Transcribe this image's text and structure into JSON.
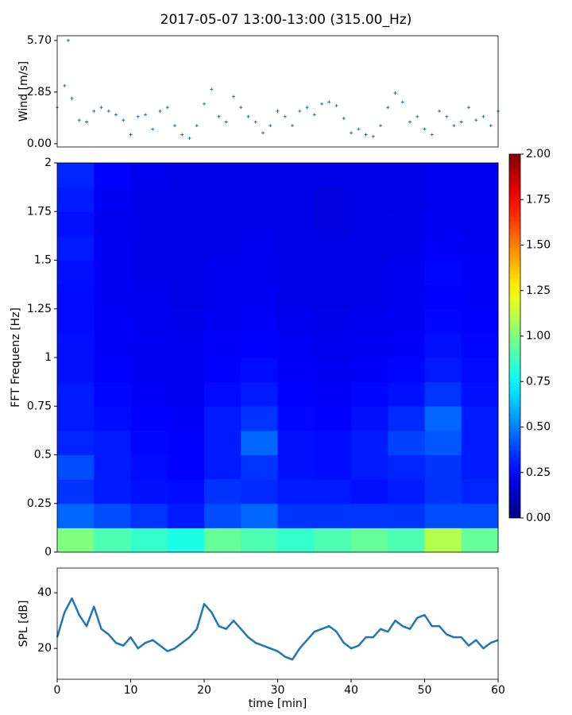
{
  "title": "2017-05-07 13:00-13:00 (315.00_Hz)",
  "chart_data": [
    {
      "type": "scatter",
      "ylabel": "Wind [m/s]",
      "color": "#1f77b4",
      "x": [
        0,
        1,
        2,
        3,
        4,
        5,
        6,
        7,
        8,
        9,
        10,
        11,
        12,
        13,
        14,
        15,
        16,
        17,
        18,
        19,
        20,
        21,
        22,
        23,
        24,
        25,
        26,
        27,
        28,
        29,
        30,
        31,
        32,
        33,
        34,
        35,
        36,
        37,
        38,
        39,
        40,
        41,
        42,
        43,
        44,
        45,
        46,
        47,
        48,
        49,
        50,
        51,
        52,
        53,
        54,
        55,
        56,
        57,
        58,
        59,
        60,
        1.5
      ],
      "values": [
        2.0,
        3.2,
        2.5,
        1.3,
        1.2,
        1.8,
        2.0,
        1.8,
        1.6,
        1.3,
        0.5,
        1.5,
        1.6,
        0.8,
        1.8,
        2.0,
        1.0,
        0.5,
        0.3,
        1.0,
        2.2,
        3.0,
        1.5,
        1.2,
        2.6,
        2.0,
        1.5,
        1.2,
        0.6,
        1.0,
        1.8,
        1.5,
        1.0,
        1.8,
        2.0,
        1.6,
        2.2,
        2.3,
        2.1,
        1.4,
        0.6,
        0.8,
        0.5,
        0.4,
        1.0,
        2.0,
        2.8,
        2.3,
        1.2,
        1.5,
        0.8,
        0.5,
        1.8,
        1.5,
        1.0,
        1.2,
        2.0,
        1.3,
        1.5,
        1.0,
        1.8,
        5.7
      ],
      "xlim": [
        0,
        60
      ],
      "ylim": [
        -0.18,
        5.96
      ],
      "yticks": [
        {
          "value": 0,
          "label": "0.00"
        },
        {
          "value": 2.85,
          "label": "2.85"
        },
        {
          "value": 5.7,
          "label": "5.70"
        }
      ]
    },
    {
      "type": "heatmap",
      "ylabel": "FFT Frequenz [Hz]",
      "colormap": "jet",
      "xbins": [
        0,
        5,
        10,
        15,
        20,
        25,
        30,
        35,
        40,
        45,
        50,
        55,
        60
      ],
      "ybins": [
        0,
        0.125,
        0.25,
        0.375,
        0.5,
        0.625,
        0.75,
        0.875,
        1,
        1.125,
        1.25,
        1.375,
        1.5,
        1.625,
        1.75,
        1.875,
        2
      ],
      "values": [
        [
          1.0,
          0.9,
          0.85,
          0.8,
          0.95,
          0.9,
          0.85,
          0.9,
          0.95,
          0.9,
          1.1,
          0.95
        ],
        [
          0.45,
          0.4,
          0.35,
          0.3,
          0.4,
          0.45,
          0.35,
          0.35,
          0.35,
          0.35,
          0.4,
          0.4
        ],
        [
          0.35,
          0.3,
          0.28,
          0.27,
          0.35,
          0.33,
          0.3,
          0.3,
          0.28,
          0.3,
          0.35,
          0.32
        ],
        [
          0.4,
          0.3,
          0.27,
          0.25,
          0.3,
          0.35,
          0.28,
          0.27,
          0.3,
          0.32,
          0.35,
          0.3
        ],
        [
          0.32,
          0.3,
          0.26,
          0.25,
          0.3,
          0.45,
          0.28,
          0.27,
          0.3,
          0.38,
          0.42,
          0.3
        ],
        [
          0.3,
          0.27,
          0.25,
          0.24,
          0.3,
          0.35,
          0.26,
          0.25,
          0.28,
          0.33,
          0.45,
          0.3
        ],
        [
          0.3,
          0.26,
          0.24,
          0.23,
          0.27,
          0.3,
          0.25,
          0.24,
          0.26,
          0.28,
          0.35,
          0.28
        ],
        [
          0.28,
          0.25,
          0.23,
          0.22,
          0.25,
          0.27,
          0.24,
          0.23,
          0.24,
          0.26,
          0.3,
          0.27
        ],
        [
          0.28,
          0.24,
          0.23,
          0.22,
          0.24,
          0.25,
          0.23,
          0.22,
          0.23,
          0.24,
          0.28,
          0.26
        ],
        [
          0.27,
          0.24,
          0.22,
          0.21,
          0.23,
          0.24,
          0.22,
          0.21,
          0.22,
          0.23,
          0.26,
          0.25
        ],
        [
          0.27,
          0.23,
          0.22,
          0.2,
          0.22,
          0.23,
          0.21,
          0.2,
          0.21,
          0.22,
          0.25,
          0.24
        ],
        [
          0.28,
          0.23,
          0.21,
          0.2,
          0.22,
          0.22,
          0.21,
          0.2,
          0.21,
          0.22,
          0.26,
          0.24
        ],
        [
          0.3,
          0.23,
          0.21,
          0.2,
          0.21,
          0.22,
          0.2,
          0.2,
          0.2,
          0.21,
          0.24,
          0.23
        ],
        [
          0.28,
          0.22,
          0.21,
          0.2,
          0.21,
          0.21,
          0.2,
          0.19,
          0.2,
          0.21,
          0.23,
          0.22
        ],
        [
          0.3,
          0.23,
          0.21,
          0.2,
          0.21,
          0.21,
          0.2,
          0.19,
          0.2,
          0.2,
          0.22,
          0.22
        ],
        [
          0.32,
          0.25,
          0.22,
          0.2,
          0.21,
          0.21,
          0.2,
          0.2,
          0.2,
          0.2,
          0.22,
          0.22
        ]
      ],
      "xlim": [
        0,
        60
      ],
      "ylim": [
        0,
        2
      ],
      "yticks": [
        0,
        0.25,
        0.5,
        0.75,
        1,
        1.25,
        1.5,
        1.75,
        2
      ],
      "colorbar": {
        "lim": [
          0,
          2
        ],
        "ticks": [
          {
            "value": 0,
            "label": "0.00"
          },
          {
            "value": 0.25,
            "label": "0.25"
          },
          {
            "value": 0.5,
            "label": "0.50"
          },
          {
            "value": 0.75,
            "label": "0.75"
          },
          {
            "value": 1,
            "label": "1.00"
          },
          {
            "value": 1.25,
            "label": "1.25"
          },
          {
            "value": 1.5,
            "label": "1.50"
          },
          {
            "value": 1.75,
            "label": "1.75"
          },
          {
            "value": 2,
            "label": "2.00"
          }
        ]
      }
    },
    {
      "type": "line",
      "ylabel": "SPL [dB]",
      "xlabel": "time [min]",
      "color": "#1f77b4",
      "x": [
        0,
        1,
        2,
        3,
        4,
        5,
        6,
        7,
        8,
        9,
        10,
        11,
        12,
        13,
        14,
        15,
        16,
        17,
        18,
        19,
        20,
        21,
        22,
        23,
        24,
        25,
        26,
        27,
        28,
        29,
        30,
        31,
        32,
        33,
        34,
        35,
        36,
        37,
        38,
        39,
        40,
        41,
        42,
        43,
        44,
        45,
        46,
        47,
        48,
        49,
        50,
        51,
        52,
        53,
        54,
        55,
        56,
        57,
        58,
        59,
        60
      ],
      "values": [
        24,
        33,
        38,
        32,
        28,
        35,
        27,
        25,
        22,
        21,
        24,
        20,
        22,
        23,
        21,
        19,
        20,
        22,
        24,
        27,
        36,
        33,
        28,
        27,
        30,
        27,
        24,
        22,
        21,
        20,
        19,
        17,
        16,
        20,
        23,
        26,
        27,
        28,
        26,
        22,
        20,
        21,
        24,
        24,
        27,
        26,
        30,
        28,
        27,
        31,
        32,
        28,
        28,
        25,
        24,
        24,
        21,
        23,
        20,
        22,
        23
      ],
      "xlim": [
        0,
        60
      ],
      "ylim": [
        8.9,
        48.9
      ],
      "xticks": [
        0,
        10,
        20,
        30,
        40,
        50,
        60
      ],
      "yticks": [
        20,
        40
      ]
    }
  ]
}
